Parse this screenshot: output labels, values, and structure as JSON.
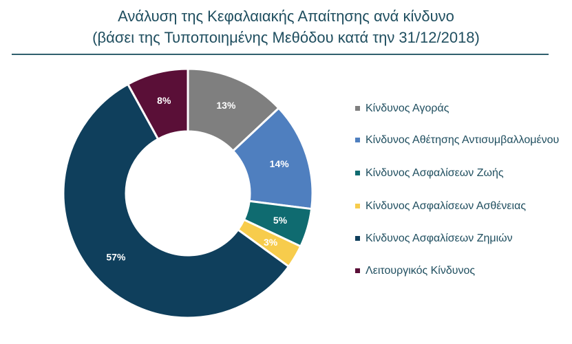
{
  "chart_data": {
    "type": "pie",
    "donut": true,
    "title_line1": "Ανάλυση της Κεφαλαιακής Απαίτησης ανά κίνδυνο",
    "title_line2": "(βάσει της Τυποποιημένης Μεθόδου κατά την 31/12/2018)",
    "categories": [
      "Κίνδυνος Αγοράς",
      "Κίνδυνος Αθέτησης Αντισυμβαλλομένου",
      "Κίνδυνος Ασφαλίσεων Ζωής",
      "Κίνδυνος Ασφαλίσεων Ασθένειας",
      "Κίνδυνος Ασφαλίσεων Ζημιών",
      "Λειτουργικός Κίνδυνος"
    ],
    "values": [
      13,
      14,
      5,
      3,
      57,
      8
    ],
    "data_labels": [
      "13%",
      "14%",
      "5%",
      "3%",
      "57%",
      "8%"
    ],
    "colors": [
      "#7f7f7f",
      "#4f7fbf",
      "#0f6b70",
      "#f7cc4c",
      "#0f3f5c",
      "#5a0f37"
    ],
    "legend_position": "right"
  }
}
